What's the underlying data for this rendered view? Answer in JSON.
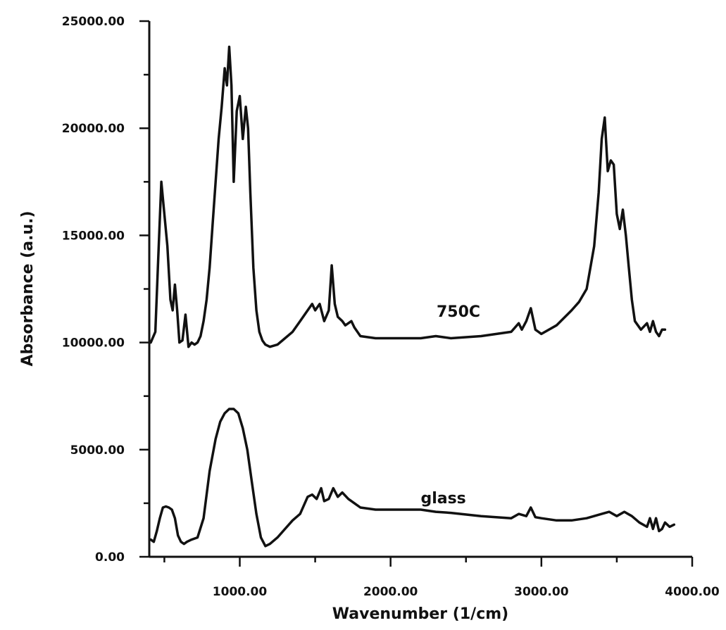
{
  "chart_data": {
    "type": "line",
    "title": "",
    "xlabel": "Wavenumber (1/cm)",
    "ylabel": "Absorbance (a.u.)",
    "xlim": [
      400,
      4000
    ],
    "ylim": [
      0,
      25000
    ],
    "x_ticks": [
      {
        "value": 1000,
        "label": "1000.00"
      },
      {
        "value": 2000,
        "label": "2000.00"
      },
      {
        "value": 3000,
        "label": "3000.00"
      },
      {
        "value": 4000,
        "label": "4000.00"
      }
    ],
    "y_ticks": [
      {
        "value": 0,
        "label": "0.00"
      },
      {
        "value": 5000,
        "label": "5000.00"
      },
      {
        "value": 10000,
        "label": "10000.00"
      },
      {
        "value": 15000,
        "label": "15000.00"
      },
      {
        "value": 20000,
        "label": "20000.00"
      },
      {
        "value": 25000,
        "label": "25000.00"
      }
    ],
    "x_minor_step": 500,
    "y_minor_step": 2500,
    "grid": false,
    "line_color": "#111111",
    "series": [
      {
        "name": "750C",
        "x": [
          410,
          440,
          460,
          480,
          500,
          520,
          540,
          555,
          570,
          585,
          600,
          620,
          640,
          660,
          680,
          700,
          720,
          740,
          760,
          780,
          800,
          820,
          840,
          860,
          880,
          900,
          915,
          930,
          945,
          960,
          980,
          1000,
          1020,
          1040,
          1055,
          1070,
          1090,
          1110,
          1130,
          1150,
          1170,
          1200,
          1250,
          1300,
          1350,
          1400,
          1450,
          1480,
          1500,
          1530,
          1560,
          1590,
          1610,
          1630,
          1650,
          1680,
          1700,
          1740,
          1760,
          1800,
          1900,
          2000,
          2200,
          2300,
          2350,
          2400,
          2600,
          2800,
          2850,
          2870,
          2900,
          2930,
          2960,
          3000,
          3100,
          3200,
          3250,
          3300,
          3350,
          3380,
          3400,
          3420,
          3440,
          3460,
          3480,
          3500,
          3520,
          3540,
          3560,
          3580,
          3600,
          3620,
          3660,
          3700,
          3720,
          3740,
          3760,
          3780,
          3800,
          3820
        ],
        "y": [
          10000,
          10500,
          14000,
          17500,
          16000,
          14500,
          12000,
          11500,
          12700,
          11500,
          10000,
          10100,
          11300,
          9800,
          10000,
          9900,
          10000,
          10300,
          11000,
          12000,
          13500,
          15500,
          17500,
          19500,
          21000,
          22800,
          22000,
          23800,
          22000,
          17500,
          20800,
          21500,
          19500,
          21000,
          20000,
          17000,
          13500,
          11500,
          10500,
          10100,
          9900,
          9800,
          9900,
          10200,
          10500,
          11000,
          11500,
          11800,
          11500,
          11800,
          11000,
          11500,
          13600,
          11800,
          11200,
          11000,
          10800,
          11000,
          10700,
          10300,
          10200,
          10200,
          10200,
          10300,
          10250,
          10200,
          10300,
          10500,
          10900,
          10600,
          11000,
          11600,
          10600,
          10400,
          10800,
          11500,
          11900,
          12500,
          14500,
          17000,
          19500,
          20500,
          18000,
          18500,
          18300,
          16000,
          15300,
          16200,
          15000,
          13500,
          12000,
          11000,
          10600,
          10900,
          10500,
          11000,
          10500,
          10300,
          10600,
          10600
        ],
        "label": "750C"
      },
      {
        "name": "glass",
        "x": [
          410,
          430,
          450,
          470,
          490,
          510,
          530,
          550,
          570,
          590,
          610,
          630,
          650,
          680,
          720,
          760,
          800,
          840,
          870,
          900,
          930,
          960,
          990,
          1020,
          1050,
          1080,
          1110,
          1140,
          1170,
          1200,
          1250,
          1300,
          1350,
          1400,
          1450,
          1480,
          1510,
          1540,
          1560,
          1590,
          1620,
          1650,
          1680,
          1720,
          1760,
          1800,
          1900,
          2000,
          2200,
          2300,
          2400,
          2600,
          2800,
          2850,
          2900,
          2930,
          2960,
          3000,
          3100,
          3200,
          3300,
          3400,
          3450,
          3500,
          3550,
          3600,
          3650,
          3700,
          3720,
          3740,
          3760,
          3780,
          3800,
          3820,
          3850,
          3880
        ],
        "y": [
          800,
          700,
          1200,
          1800,
          2300,
          2350,
          2300,
          2200,
          1800,
          1000,
          700,
          600,
          700,
          800,
          900,
          1800,
          4000,
          5500,
          6300,
          6700,
          6900,
          6900,
          6700,
          6000,
          5000,
          3500,
          2000,
          900,
          500,
          600,
          900,
          1300,
          1700,
          2000,
          2800,
          2900,
          2700,
          3200,
          2600,
          2700,
          3200,
          2800,
          3000,
          2700,
          2500,
          2300,
          2200,
          2200,
          2200,
          2100,
          2050,
          1900,
          1800,
          2000,
          1900,
          2300,
          1850,
          1800,
          1700,
          1700,
          1800,
          2000,
          2100,
          1900,
          2100,
          1900,
          1600,
          1400,
          1800,
          1300,
          1800,
          1200,
          1300,
          1600,
          1400,
          1500
        ],
        "label": "glass"
      }
    ]
  }
}
